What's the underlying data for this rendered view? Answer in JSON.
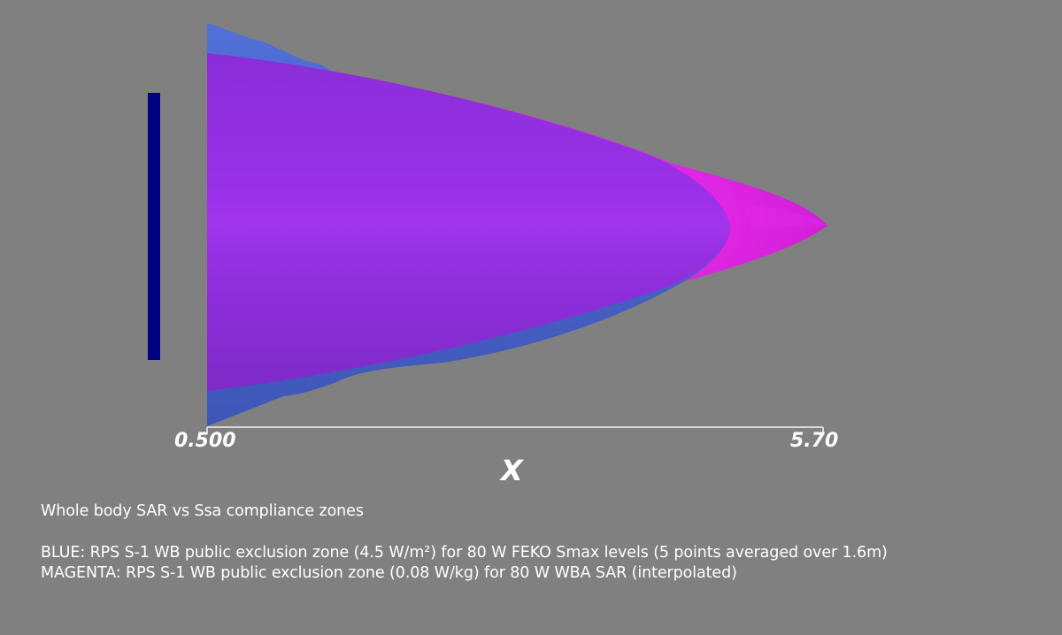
{
  "axis": {
    "title": "X",
    "tick_min": "0.500",
    "tick_max": "5.70"
  },
  "caption": {
    "title": "Whole body SAR vs Ssa compliance zones",
    "blue_line": "BLUE: RPS S-1 WB public exclusion zone (4.5 W/m²) for 80 W FEKO Smax levels (5 points averaged over 1.6m)",
    "magenta_line": "MAGENTA: RPS S-1 WB public exclusion zone (0.08 W/kg) for 80 W WBA SAR (interpolated)"
  },
  "colors": {
    "background": "#808080",
    "blue_zone": "#4a63c8",
    "magenta_zone": "#d21ed8",
    "overlap_purple": "#9a30e0",
    "antenna_bar": "#000080",
    "axis_line": "#d8d8d8",
    "text": "#ffffff"
  }
}
